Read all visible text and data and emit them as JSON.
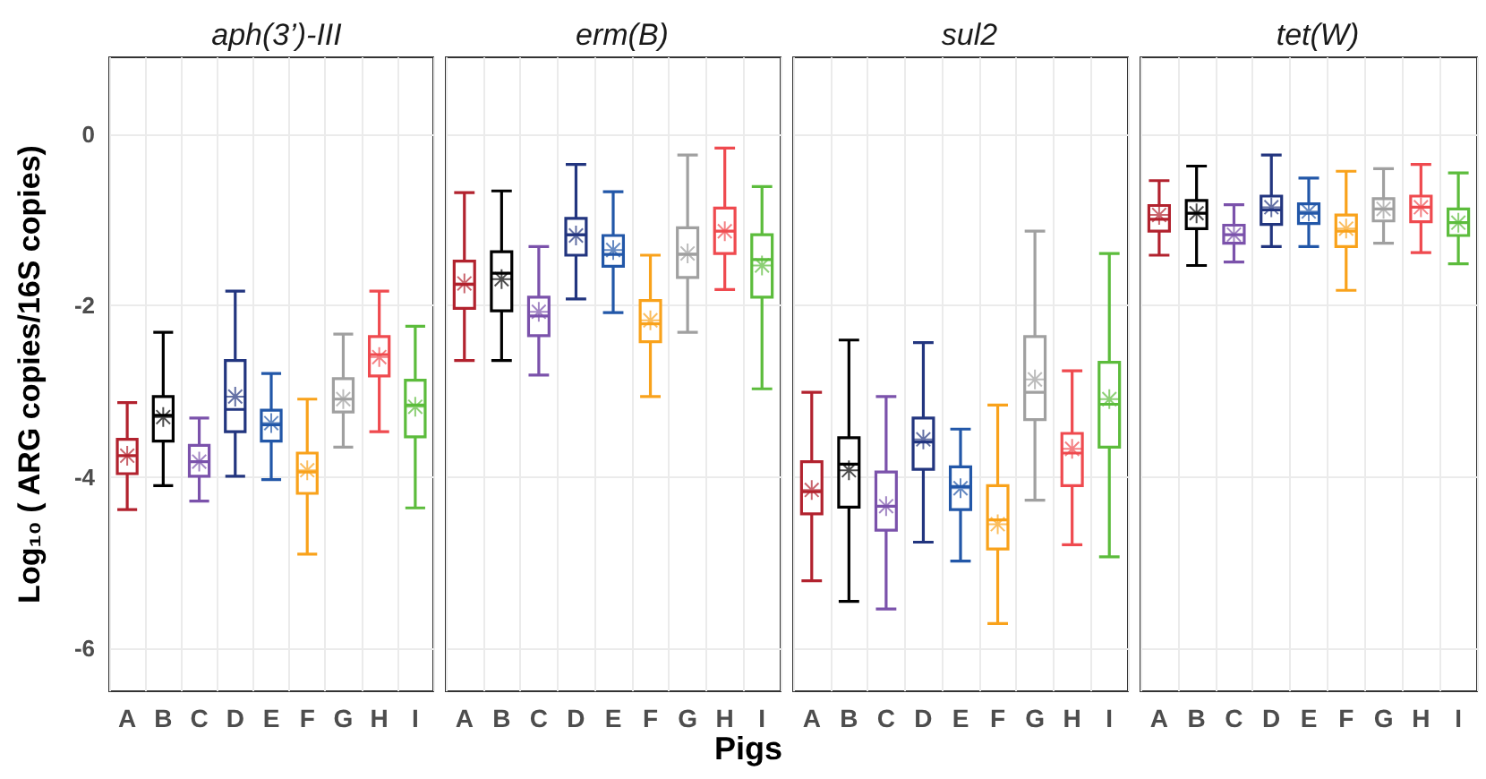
{
  "chart_data": [
    {
      "type": "box",
      "title": "aph(3’)-III",
      "ylabel": "Log₁₀ ( ARG copies/16S copies)",
      "categories": [
        "A",
        "B",
        "C",
        "D",
        "E",
        "F",
        "G",
        "H",
        "I"
      ],
      "colors": [
        "#b2222e",
        "#000000",
        "#7b52ab",
        "#22357f",
        "#2257a8",
        "#f9a21b",
        "#a0a0a0",
        "#ef4a4f",
        "#5cbc3c"
      ],
      "ylim": [
        -6.5,
        0.9
      ],
      "yticks": [
        -6,
        -4,
        -2,
        0
      ],
      "grid": true,
      "marker": "star",
      "boxes": [
        {
          "low": -4.38,
          "q1": -3.96,
          "median": -3.75,
          "q3": -3.56,
          "high": -3.13,
          "mean": -3.75
        },
        {
          "low": -4.1,
          "q1": -3.58,
          "median": -3.28,
          "q3": -3.06,
          "high": -2.31,
          "mean": -3.3
        },
        {
          "low": -4.28,
          "q1": -3.99,
          "median": -3.82,
          "q3": -3.63,
          "high": -3.31,
          "mean": -3.82
        },
        {
          "low": -3.99,
          "q1": -3.47,
          "median": -3.21,
          "q3": -2.64,
          "high": -1.83,
          "mean": -3.06
        },
        {
          "low": -4.03,
          "q1": -3.58,
          "median": -3.39,
          "q3": -3.22,
          "high": -2.79,
          "mean": -3.37
        },
        {
          "low": -4.9,
          "q1": -4.19,
          "median": -3.94,
          "q3": -3.72,
          "high": -3.09,
          "mean": -3.92
        },
        {
          "low": -3.65,
          "q1": -3.24,
          "median": -3.09,
          "q3": -2.85,
          "high": -2.33,
          "mean": -3.09
        },
        {
          "low": -3.47,
          "q1": -2.82,
          "median": -2.57,
          "q3": -2.36,
          "high": -1.83,
          "mean": -2.6
        },
        {
          "low": -4.36,
          "q1": -3.53,
          "median": -3.16,
          "q3": -2.87,
          "high": -2.24,
          "mean": -3.18
        }
      ]
    },
    {
      "type": "box",
      "title": "erm(B)",
      "xlabel": "Pigs",
      "categories": [
        "A",
        "B",
        "C",
        "D",
        "E",
        "F",
        "G",
        "H",
        "I"
      ],
      "colors": [
        "#b2222e",
        "#000000",
        "#7b52ab",
        "#22357f",
        "#2257a8",
        "#f9a21b",
        "#a0a0a0",
        "#ef4a4f",
        "#5cbc3c"
      ],
      "ylim": [
        -6.5,
        0.9
      ],
      "yticks": [
        -6,
        -4,
        -2,
        0
      ],
      "grid": true,
      "marker": "star",
      "tick_labels": "x",
      "boxes": [
        {
          "low": -2.64,
          "q1": -2.03,
          "median": -1.75,
          "q3": -1.48,
          "high": -0.68,
          "mean": -1.74
        },
        {
          "low": -2.64,
          "q1": -2.06,
          "median": -1.62,
          "q3": -1.37,
          "high": -0.66,
          "mean": -1.69
        },
        {
          "low": -2.81,
          "q1": -2.35,
          "median": -2.12,
          "q3": -1.9,
          "high": -1.31,
          "mean": -2.07
        },
        {
          "low": -1.92,
          "q1": -1.41,
          "median": -1.17,
          "q3": -0.98,
          "high": -0.35,
          "mean": -1.18
        },
        {
          "low": -2.08,
          "q1": -1.54,
          "median": -1.4,
          "q3": -1.18,
          "high": -0.67,
          "mean": -1.35
        },
        {
          "low": -3.06,
          "q1": -2.42,
          "median": -2.21,
          "q3": -1.94,
          "high": -1.41,
          "mean": -2.17
        },
        {
          "low": -2.31,
          "q1": -1.67,
          "median": -1.4,
          "q3": -1.09,
          "high": -0.24,
          "mean": -1.39
        },
        {
          "low": -1.81,
          "q1": -1.39,
          "median": -1.13,
          "q3": -0.86,
          "high": -0.16,
          "mean": -1.13
        },
        {
          "low": -2.97,
          "q1": -1.9,
          "median": -1.46,
          "q3": -1.17,
          "high": -0.61,
          "mean": -1.53
        }
      ]
    },
    {
      "type": "box",
      "title": "sul2",
      "categories": [
        "A",
        "B",
        "C",
        "D",
        "E",
        "F",
        "G",
        "H",
        "I"
      ],
      "colors": [
        "#b2222e",
        "#000000",
        "#7b52ab",
        "#22357f",
        "#2257a8",
        "#f9a21b",
        "#a0a0a0",
        "#ef4a4f",
        "#5cbc3c"
      ],
      "ylim": [
        -6.5,
        0.9
      ],
      "yticks": [
        -6,
        -4,
        -2,
        0
      ],
      "grid": true,
      "marker": "star",
      "tick_labels": "x",
      "boxes": [
        {
          "low": -5.21,
          "q1": -4.43,
          "median": -4.17,
          "q3": -3.82,
          "high": -3.01,
          "mean": -4.15
        },
        {
          "low": -5.45,
          "q1": -4.35,
          "median": -3.85,
          "q3": -3.54,
          "high": -2.4,
          "mean": -3.92
        },
        {
          "low": -5.54,
          "q1": -4.62,
          "median": -4.34,
          "q3": -3.94,
          "high": -3.06,
          "mean": -4.34
        },
        {
          "low": -4.76,
          "q1": -3.91,
          "median": -3.59,
          "q3": -3.31,
          "high": -2.43,
          "mean": -3.56
        },
        {
          "low": -4.98,
          "q1": -4.38,
          "median": -4.11,
          "q3": -3.88,
          "high": -3.44,
          "mean": -4.13
        },
        {
          "low": -5.71,
          "q1": -4.84,
          "median": -4.5,
          "q3": -4.1,
          "high": -3.16,
          "mean": -4.55
        },
        {
          "low": -4.27,
          "q1": -3.33,
          "median": -3.01,
          "q3": -2.36,
          "high": -1.13,
          "mean": -2.86
        },
        {
          "low": -4.79,
          "q1": -4.1,
          "median": -3.72,
          "q3": -3.49,
          "high": -2.76,
          "mean": -3.67
        },
        {
          "low": -4.93,
          "q1": -3.65,
          "median": -3.15,
          "q3": -2.66,
          "high": -1.39,
          "mean": -3.09
        }
      ]
    },
    {
      "type": "box",
      "title": "tet(W)",
      "categories": [
        "A",
        "B",
        "C",
        "D",
        "E",
        "F",
        "G",
        "H",
        "I"
      ],
      "colors": [
        "#b2222e",
        "#000000",
        "#7b52ab",
        "#22357f",
        "#2257a8",
        "#f9a21b",
        "#a0a0a0",
        "#ef4a4f",
        "#5cbc3c"
      ],
      "ylim": [
        -6.5,
        0.9
      ],
      "yticks": [
        -6,
        -4,
        -2,
        0
      ],
      "grid": true,
      "marker": "star",
      "tick_labels": "x",
      "boxes": [
        {
          "low": -1.41,
          "q1": -1.13,
          "median": -0.99,
          "q3": -0.83,
          "high": -0.54,
          "mean": -0.94
        },
        {
          "low": -1.53,
          "q1": -1.1,
          "median": -0.92,
          "q3": -0.77,
          "high": -0.37,
          "mean": -0.92
        },
        {
          "low": -1.49,
          "q1": -1.27,
          "median": -1.17,
          "q3": -1.06,
          "high": -0.82,
          "mean": -1.17
        },
        {
          "low": -1.31,
          "q1": -1.05,
          "median": -0.88,
          "q3": -0.72,
          "high": -0.24,
          "mean": -0.85
        },
        {
          "low": -1.31,
          "q1": -1.04,
          "median": -0.92,
          "q3": -0.81,
          "high": -0.51,
          "mean": -0.9
        },
        {
          "low": -1.82,
          "q1": -1.31,
          "median": -1.13,
          "q3": -0.94,
          "high": -0.43,
          "mean": -1.1
        },
        {
          "low": -1.27,
          "q1": -1.01,
          "median": -0.87,
          "q3": -0.75,
          "high": -0.4,
          "mean": -0.87
        },
        {
          "low": -1.38,
          "q1": -1.02,
          "median": -0.85,
          "q3": -0.72,
          "high": -0.35,
          "mean": -0.85
        },
        {
          "low": -1.51,
          "q1": -1.18,
          "median": -1.03,
          "q3": -0.87,
          "high": -0.45,
          "mean": -1.03
        }
      ]
    }
  ]
}
